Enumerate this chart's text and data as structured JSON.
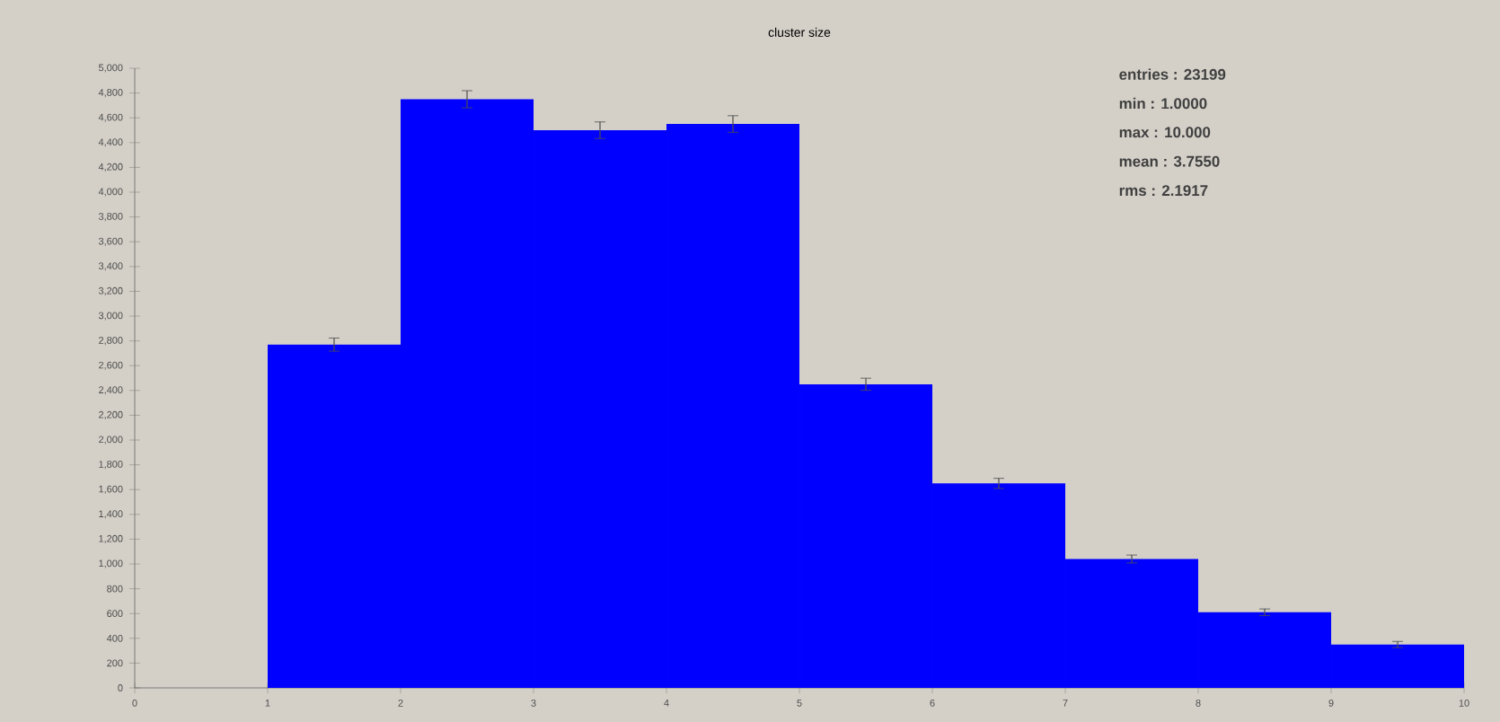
{
  "chart_data": {
    "type": "histogram",
    "title": "cluster size",
    "bins": [
      1,
      2,
      3,
      4,
      5,
      6,
      7,
      8,
      9,
      10
    ],
    "values": [
      2770,
      4750,
      4500,
      4550,
      2450,
      1650,
      1040,
      610,
      350
    ],
    "errors": [
      53,
      69,
      67,
      67,
      49,
      41,
      32,
      27,
      25
    ],
    "color": "#0000ff",
    "xlim": [
      0,
      10
    ],
    "xticks": [
      0,
      1,
      2,
      3,
      4,
      5,
      6,
      7,
      8,
      9,
      10
    ],
    "ylim": [
      0,
      5000
    ],
    "yticks": [
      0,
      200,
      400,
      600,
      800,
      {
        "value": 1000,
        "label": "1,000"
      },
      {
        "value": 1200,
        "label": "1,200"
      },
      {
        "value": 1400,
        "label": "1,400"
      },
      {
        "value": 1600,
        "label": "1,600"
      },
      {
        "value": 1800,
        "label": "1,800"
      },
      {
        "value": 2000,
        "label": "2,000"
      },
      {
        "value": 2200,
        "label": "2,200"
      },
      {
        "value": 2400,
        "label": "2,400"
      },
      {
        "value": 2600,
        "label": "2,600"
      },
      {
        "value": 2800,
        "label": "2,800"
      },
      {
        "value": 3000,
        "label": "3,000"
      },
      {
        "value": 3200,
        "label": "3,200"
      },
      {
        "value": 3400,
        "label": "3,400"
      },
      {
        "value": 3600,
        "label": "3,600"
      },
      {
        "value": 3800,
        "label": "3,800"
      },
      {
        "value": 4000,
        "label": "4,000"
      },
      {
        "value": 4200,
        "label": "4,200"
      },
      {
        "value": 4400,
        "label": "4,400"
      },
      {
        "value": 4600,
        "label": "4,600"
      },
      {
        "value": 4800,
        "label": "4,800"
      },
      {
        "value": 5000,
        "label": "5,000"
      }
    ],
    "grid": false,
    "annotations": [
      "entries : 23199",
      "min :   1.0000",
      "max :   10.000",
      "mean :  3.7550",
      "rms :   2.1917"
    ]
  }
}
